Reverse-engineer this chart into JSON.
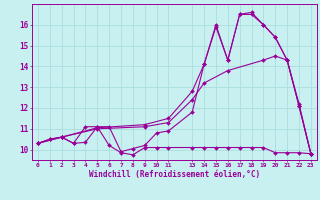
{
  "bg_color": "#c8f0f0",
  "grid_color": "#aadddd",
  "line_color": "#990099",
  "xlabel": "Windchill (Refroidissement éolien,°C)",
  "xlim_min": -0.5,
  "xlim_max": 23.5,
  "ylim_min": 9.5,
  "ylim_max": 17.0,
  "yticks": [
    10,
    11,
    12,
    13,
    14,
    15,
    16
  ],
  "xticks": [
    0,
    1,
    2,
    3,
    4,
    5,
    6,
    7,
    8,
    9,
    10,
    11,
    13,
    14,
    15,
    16,
    17,
    18,
    19,
    20,
    21,
    22,
    23
  ],
  "series": [
    {
      "x": [
        0,
        1,
        2,
        3,
        4,
        5,
        6,
        7,
        8,
        9,
        10,
        11,
        13,
        14,
        15,
        16,
        17,
        18,
        19,
        20,
        21,
        22,
        23
      ],
      "y": [
        10.3,
        10.5,
        10.6,
        10.3,
        10.35,
        11.1,
        11.1,
        9.9,
        10.05,
        10.2,
        10.8,
        10.9,
        11.8,
        14.1,
        16.0,
        14.3,
        16.5,
        16.6,
        16.0,
        15.4,
        14.3,
        12.1,
        9.8
      ]
    },
    {
      "x": [
        0,
        1,
        2,
        3,
        4,
        5,
        6,
        7,
        8,
        9,
        10,
        11,
        13,
        14,
        15,
        16,
        17,
        18,
        19,
        20,
        21,
        22,
        23
      ],
      "y": [
        10.3,
        10.5,
        10.6,
        10.3,
        11.1,
        11.1,
        10.2,
        9.85,
        9.75,
        10.1,
        10.1,
        10.1,
        10.1,
        10.1,
        10.1,
        10.1,
        10.1,
        10.1,
        10.1,
        9.85,
        9.85,
        9.85,
        9.8
      ]
    },
    {
      "x": [
        0,
        2,
        5,
        9,
        11,
        13,
        14,
        16,
        19,
        20,
        21,
        22,
        23
      ],
      "y": [
        10.3,
        10.6,
        11.0,
        11.1,
        11.3,
        12.4,
        13.2,
        13.8,
        14.3,
        14.5,
        14.3,
        12.2,
        9.8
      ]
    },
    {
      "x": [
        0,
        2,
        5,
        9,
        11,
        13,
        14,
        15,
        16,
        17,
        18,
        19,
        20,
        21,
        22,
        23
      ],
      "y": [
        10.3,
        10.6,
        11.05,
        11.2,
        11.5,
        12.8,
        14.1,
        15.9,
        14.3,
        16.5,
        16.5,
        16.0,
        15.4,
        14.3,
        12.1,
        9.8
      ]
    }
  ]
}
